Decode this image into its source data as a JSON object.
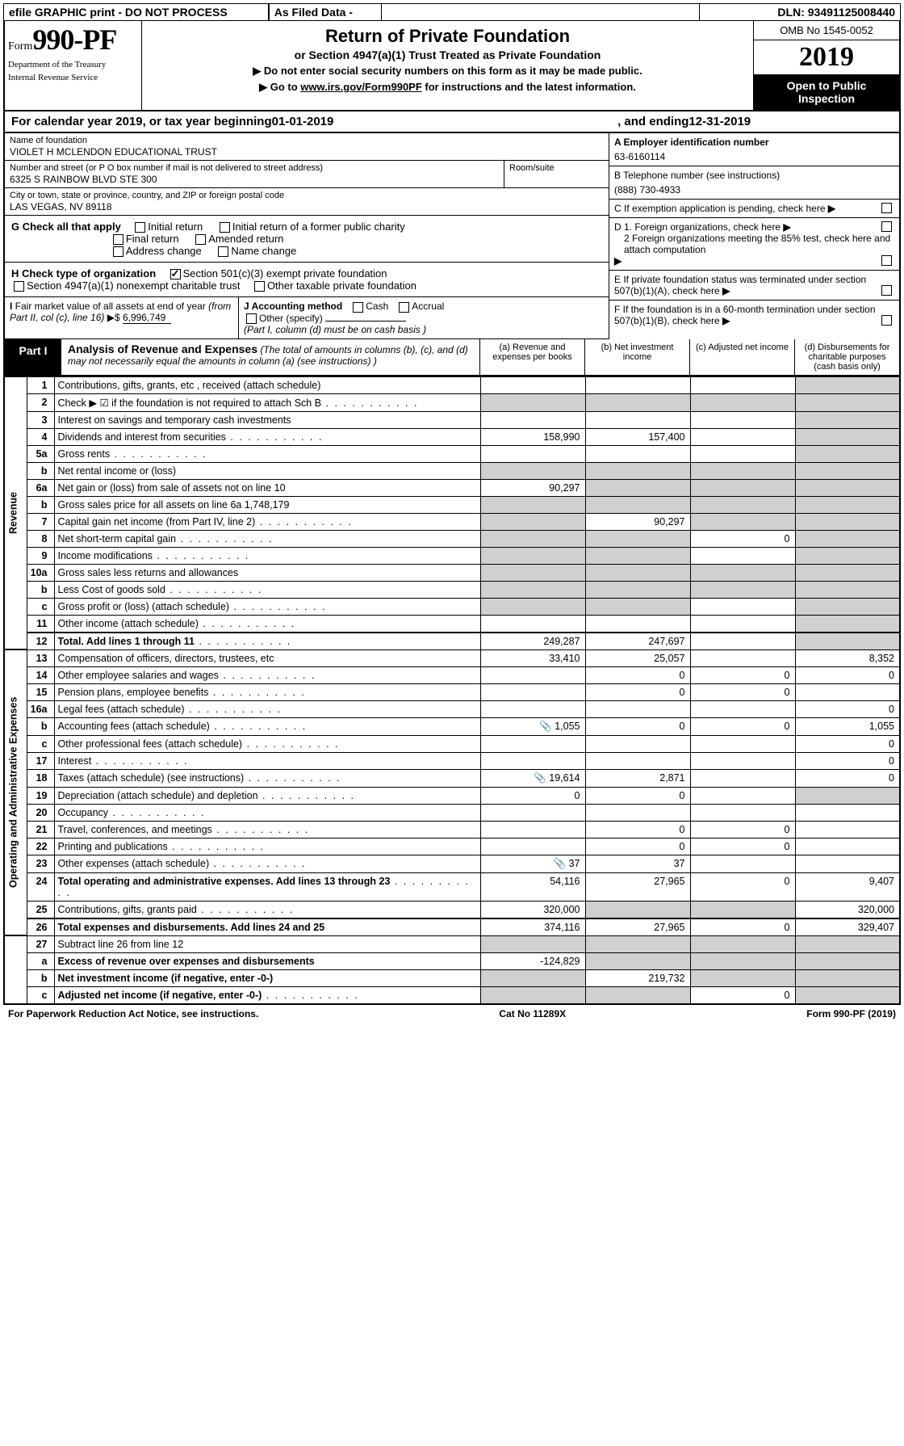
{
  "top": {
    "efile": "efile GRAPHIC print - DO NOT PROCESS",
    "asfiled": "As Filed Data -",
    "dln": "DLN: 93491125008440"
  },
  "header": {
    "form_prefix": "Form",
    "form_no": "990-PF",
    "dept1": "Department of the Treasury",
    "dept2": "Internal Revenue Service",
    "title": "Return of Private Foundation",
    "subtitle": "or Section 4947(a)(1) Trust Treated as Private Foundation",
    "instr1": "▶ Do not enter social security numbers on this form as it may be made public.",
    "instr2_pre": "▶ Go to ",
    "instr2_link": "www.irs.gov/Form990PF",
    "instr2_post": " for instructions and the latest information.",
    "omb": "OMB No 1545-0052",
    "year": "2019",
    "open": "Open to Public Inspection"
  },
  "calyear": {
    "text_a": "For calendar year 2019, or tax year beginning ",
    "begin": "01-01-2019",
    "text_b": ", and ending ",
    "end": "12-31-2019"
  },
  "entity": {
    "name_lbl": "Name of foundation",
    "name": "VIOLET H MCLENDON EDUCATIONAL TRUST",
    "addr_lbl": "Number and street (or P O  box number if mail is not delivered to street address)",
    "addr": "6325 S RAINBOW BLVD STE 300",
    "room_lbl": "Room/suite",
    "city_lbl": "City or town, state or province, country, and ZIP or foreign postal code",
    "city": "LAS VEGAS, NV  89118"
  },
  "right": {
    "A_lbl": "A Employer identification number",
    "A_val": "63-6160114",
    "B_lbl": "B Telephone number (see instructions)",
    "B_val": "(888) 730-4933",
    "C": "C If exemption application is pending, check here",
    "D1": "D 1. Foreign organizations, check here",
    "D2": "2 Foreign organizations meeting the 85% test, check here and attach computation",
    "E": "E  If private foundation status was terminated under section 507(b)(1)(A), check here",
    "F": "F  If the foundation is in a 60-month termination under section 507(b)(1)(B), check here"
  },
  "G": {
    "lbl": "G Check all that apply",
    "opts": [
      "Initial return",
      "Initial return of a former public charity",
      "Final return",
      "Amended return",
      "Address change",
      "Name change"
    ]
  },
  "H": {
    "lbl": "H Check type of organization",
    "opt1": "Section 501(c)(3) exempt private foundation",
    "opt2": "Section 4947(a)(1) nonexempt charitable trust",
    "opt3": "Other taxable private foundation"
  },
  "I": {
    "lbl": "I Fair market value of all assets at end of year (from Part II, col  (c), line 16) ▶$ ",
    "val": "6,996,749"
  },
  "J": {
    "lbl": "J Accounting method",
    "cash": "Cash",
    "accrual": "Accrual",
    "other": "Other (specify)",
    "note": "(Part I, column (d) must be on cash basis )"
  },
  "part1": {
    "lbl": "Part I",
    "title": "Analysis of Revenue and Expenses",
    "note": " (The total of amounts in columns (b), (c), and (d) may not necessarily equal the amounts in column (a) (see instructions) )",
    "col_a": "(a)   Revenue and expenses per books",
    "col_b": "(b)  Net investment income",
    "col_c": "(c)  Adjusted net income",
    "col_d": "(d)  Disbursements for charitable purposes (cash basis only)"
  },
  "side": {
    "rev": "Revenue",
    "exp": "Operating and Administrative Expenses"
  },
  "rows": [
    {
      "n": "1",
      "d": "Contributions, gifts, grants, etc , received (attach schedule)",
      "a": "",
      "b": "",
      "c": "",
      "dd": "",
      "shade_c": false,
      "shade_d": true
    },
    {
      "n": "2",
      "d": "Check ▶ ☑ if the foundation is not required to attach Sch B",
      "a": "",
      "b": "",
      "c": "",
      "dd": "",
      "shade_a": true,
      "shade_b": true,
      "shade_c": true,
      "shade_d": true,
      "dots": true
    },
    {
      "n": "3",
      "d": "Interest on savings and temporary cash investments",
      "a": "",
      "b": "",
      "c": "",
      "dd": "",
      "shade_d": true
    },
    {
      "n": "4",
      "d": "Dividends and interest from securities",
      "a": "158,990",
      "b": "157,400",
      "c": "",
      "dd": "",
      "shade_d": true,
      "dots": true
    },
    {
      "n": "5a",
      "d": "Gross rents",
      "a": "",
      "b": "",
      "c": "",
      "dd": "",
      "shade_d": true,
      "dots": true
    },
    {
      "n": "b",
      "d": "Net rental income or (loss)  ",
      "a": "",
      "b": "",
      "c": "",
      "dd": "",
      "shade_a": true,
      "shade_b": true,
      "shade_c": true,
      "shade_d": true
    },
    {
      "n": "6a",
      "d": "Net gain or (loss) from sale of assets not on line 10",
      "a": "90,297",
      "b": "",
      "c": "",
      "dd": "",
      "shade_b": true,
      "shade_c": true,
      "shade_d": true
    },
    {
      "n": "b",
      "d": "Gross sales price for all assets on line 6a         1,748,179",
      "a": "",
      "b": "",
      "c": "",
      "dd": "",
      "shade_a": true,
      "shade_b": true,
      "shade_c": true,
      "shade_d": true
    },
    {
      "n": "7",
      "d": "Capital gain net income (from Part IV, line 2)",
      "a": "",
      "b": "90,297",
      "c": "",
      "dd": "",
      "shade_a": true,
      "shade_c": true,
      "shade_d": true,
      "dots": true
    },
    {
      "n": "8",
      "d": "Net short-term capital gain",
      "a": "",
      "b": "",
      "c": "0",
      "dd": "",
      "shade_a": true,
      "shade_b": true,
      "shade_d": true,
      "dots": true
    },
    {
      "n": "9",
      "d": "Income modifications",
      "a": "",
      "b": "",
      "c": "",
      "dd": "",
      "shade_a": true,
      "shade_b": true,
      "shade_d": true,
      "dots": true
    },
    {
      "n": "10a",
      "d": "Gross sales less returns and allowances ",
      "a": "",
      "b": "",
      "c": "",
      "dd": "",
      "shade_a": true,
      "shade_b": true,
      "shade_c": true,
      "shade_d": true
    },
    {
      "n": "b",
      "d": "Less  Cost of goods sold",
      "a": "",
      "b": "",
      "c": "",
      "dd": "",
      "shade_a": true,
      "shade_b": true,
      "shade_c": true,
      "shade_d": true,
      "dots": true
    },
    {
      "n": "c",
      "d": "Gross profit or (loss) (attach schedule)",
      "a": "",
      "b": "",
      "c": "",
      "dd": "",
      "shade_a": true,
      "shade_b": true,
      "shade_d": true,
      "dots": true
    },
    {
      "n": "11",
      "d": "Other income (attach schedule)",
      "a": "",
      "b": "",
      "c": "",
      "dd": "",
      "shade_d": true,
      "dots": true
    },
    {
      "n": "12",
      "d": "Total. Add lines 1 through 11",
      "a": "249,287",
      "b": "247,697",
      "c": "",
      "dd": "",
      "shade_d": true,
      "bold": true,
      "dots": true,
      "thick": true
    }
  ],
  "exp_rows": [
    {
      "n": "13",
      "d": "Compensation of officers, directors, trustees, etc",
      "a": "33,410",
      "b": "25,057",
      "c": "",
      "dd": "8,352"
    },
    {
      "n": "14",
      "d": "Other employee salaries and wages",
      "a": "",
      "b": "0",
      "c": "0",
      "dd": "0",
      "dots": true
    },
    {
      "n": "15",
      "d": "Pension plans, employee benefits",
      "a": "",
      "b": "0",
      "c": "0",
      "dd": "",
      "dots": true
    },
    {
      "n": "16a",
      "d": "Legal fees (attach schedule)",
      "a": "",
      "b": "",
      "c": "",
      "dd": "0",
      "dots": true
    },
    {
      "n": "b",
      "d": "Accounting fees (attach schedule)",
      "a": "1,055",
      "b": "0",
      "c": "0",
      "dd": "1,055",
      "dots": true,
      "icon": true
    },
    {
      "n": "c",
      "d": "Other professional fees (attach schedule)",
      "a": "",
      "b": "",
      "c": "",
      "dd": "0",
      "dots": true
    },
    {
      "n": "17",
      "d": "Interest",
      "a": "",
      "b": "",
      "c": "",
      "dd": "0",
      "dots": true
    },
    {
      "n": "18",
      "d": "Taxes (attach schedule) (see instructions)",
      "a": "19,614",
      "b": "2,871",
      "c": "",
      "dd": "0",
      "dots": true,
      "icon": true
    },
    {
      "n": "19",
      "d": "Depreciation (attach schedule) and depletion",
      "a": "0",
      "b": "0",
      "c": "",
      "dd": "",
      "shade_d": true,
      "dots": true
    },
    {
      "n": "20",
      "d": "Occupancy",
      "a": "",
      "b": "",
      "c": "",
      "dd": "",
      "dots": true
    },
    {
      "n": "21",
      "d": "Travel, conferences, and meetings",
      "a": "",
      "b": "0",
      "c": "0",
      "dd": "",
      "dots": true
    },
    {
      "n": "22",
      "d": "Printing and publications",
      "a": "",
      "b": "0",
      "c": "0",
      "dd": "",
      "dots": true
    },
    {
      "n": "23",
      "d": "Other expenses (attach schedule)",
      "a": "37",
      "b": "37",
      "c": "",
      "dd": "",
      "dots": true,
      "icon": true
    },
    {
      "n": "24",
      "d": "Total operating and administrative expenses. Add lines 13 through 23",
      "a": "54,116",
      "b": "27,965",
      "c": "0",
      "dd": "9,407",
      "bold": true,
      "dots": true
    },
    {
      "n": "25",
      "d": "Contributions, gifts, grants paid",
      "a": "320,000",
      "b": "",
      "c": "",
      "dd": "320,000",
      "shade_b": true,
      "shade_c": true,
      "dots": true
    },
    {
      "n": "26",
      "d": "Total expenses and disbursements. Add lines 24 and 25",
      "a": "374,116",
      "b": "27,965",
      "c": "0",
      "dd": "329,407",
      "bold": true,
      "thick": true
    }
  ],
  "bottom_rows": [
    {
      "n": "27",
      "d": "Subtract line 26 from line 12",
      "a": "",
      "b": "",
      "c": "",
      "dd": "",
      "shade_a": true,
      "shade_b": true,
      "shade_c": true,
      "shade_d": true
    },
    {
      "n": "a",
      "d": "Excess of revenue over expenses and disbursements",
      "a": "-124,829",
      "b": "",
      "c": "",
      "dd": "",
      "bold": true,
      "shade_b": true,
      "shade_c": true,
      "shade_d": true
    },
    {
      "n": "b",
      "d": "Net investment income (if negative, enter -0-)",
      "a": "",
      "b": "219,732",
      "c": "",
      "dd": "",
      "bold": true,
      "shade_a": true,
      "shade_c": true,
      "shade_d": true
    },
    {
      "n": "c",
      "d": "Adjusted net income (if negative, enter -0-)",
      "a": "",
      "b": "",
      "c": "0",
      "dd": "",
      "bold": true,
      "shade_a": true,
      "shade_b": true,
      "shade_d": true,
      "dots": true
    }
  ],
  "footer": {
    "left": "For Paperwork Reduction Act Notice, see instructions.",
    "mid": "Cat  No  11289X",
    "right": "Form 990-PF (2019)"
  }
}
